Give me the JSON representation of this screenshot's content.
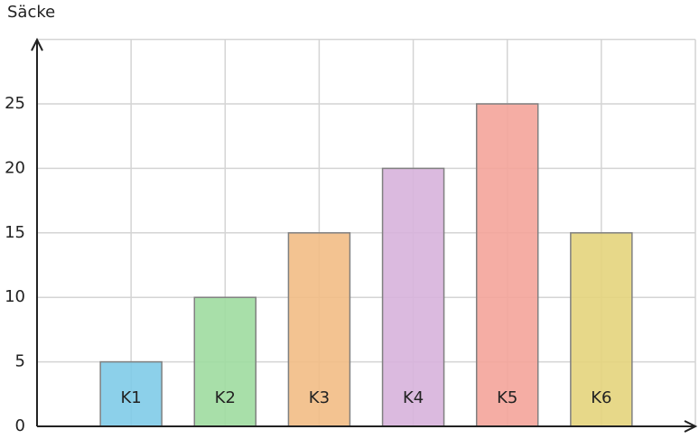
{
  "chart_data": {
    "type": "bar",
    "y_label": "Säcke",
    "categories": [
      "K1",
      "K2",
      "K3",
      "K4",
      "K5",
      "K6"
    ],
    "values": [
      5,
      10,
      15,
      20,
      25,
      15
    ],
    "colors": [
      "#7fcbe8",
      "#9fdba0",
      "#f2bd85",
      "#d7b3dc",
      "#f4a49a",
      "#e4d47c"
    ],
    "ylim": [
      0,
      30
    ],
    "yticks": [
      0,
      5,
      10,
      15,
      20,
      25
    ],
    "grid": true
  }
}
